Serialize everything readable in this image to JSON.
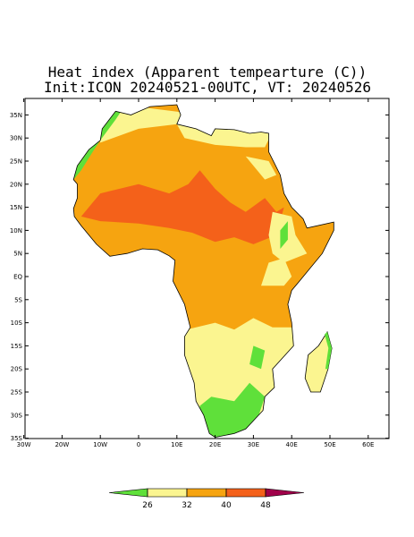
{
  "title": "Heat index (Apparent tempearture (C))",
  "subtitle": "Init:ICON 20240521-00UTC, VT: 20240526",
  "map": {
    "lat_ticks": [
      {
        "value": 35,
        "label": "35N"
      },
      {
        "value": 30,
        "label": "30N"
      },
      {
        "value": 25,
        "label": "25N"
      },
      {
        "value": 20,
        "label": "20N"
      },
      {
        "value": 15,
        "label": "15N"
      },
      {
        "value": 10,
        "label": "10N"
      },
      {
        "value": 5,
        "label": "5N"
      },
      {
        "value": 0,
        "label": "EQ"
      },
      {
        "value": -5,
        "label": "5S"
      },
      {
        "value": -10,
        "label": "10S"
      },
      {
        "value": -15,
        "label": "15S"
      },
      {
        "value": -20,
        "label": "20S"
      },
      {
        "value": -25,
        "label": "25S"
      },
      {
        "value": -30,
        "label": "30S"
      },
      {
        "value": -35,
        "label": "35S"
      }
    ],
    "lon_ticks": [
      {
        "value": -30,
        "label": "30W"
      },
      {
        "value": -20,
        "label": "20W"
      },
      {
        "value": -10,
        "label": "10W"
      },
      0,
      {
        "value": 10,
        "label": "10E"
      },
      {
        "value": 20,
        "label": "20E"
      },
      {
        "value": 30,
        "label": "30E"
      },
      {
        "value": 40,
        "label": "40E"
      },
      {
        "value": 50,
        "label": "50E"
      },
      {
        "value": 60,
        "label": "60E"
      }
    ]
  },
  "colorbar": {
    "levels": [
      26,
      32,
      40,
      48
    ],
    "colors": [
      "#5fe03a",
      "#fbf590",
      "#f6a410",
      "#f4611a",
      "#a0004a"
    ]
  }
}
